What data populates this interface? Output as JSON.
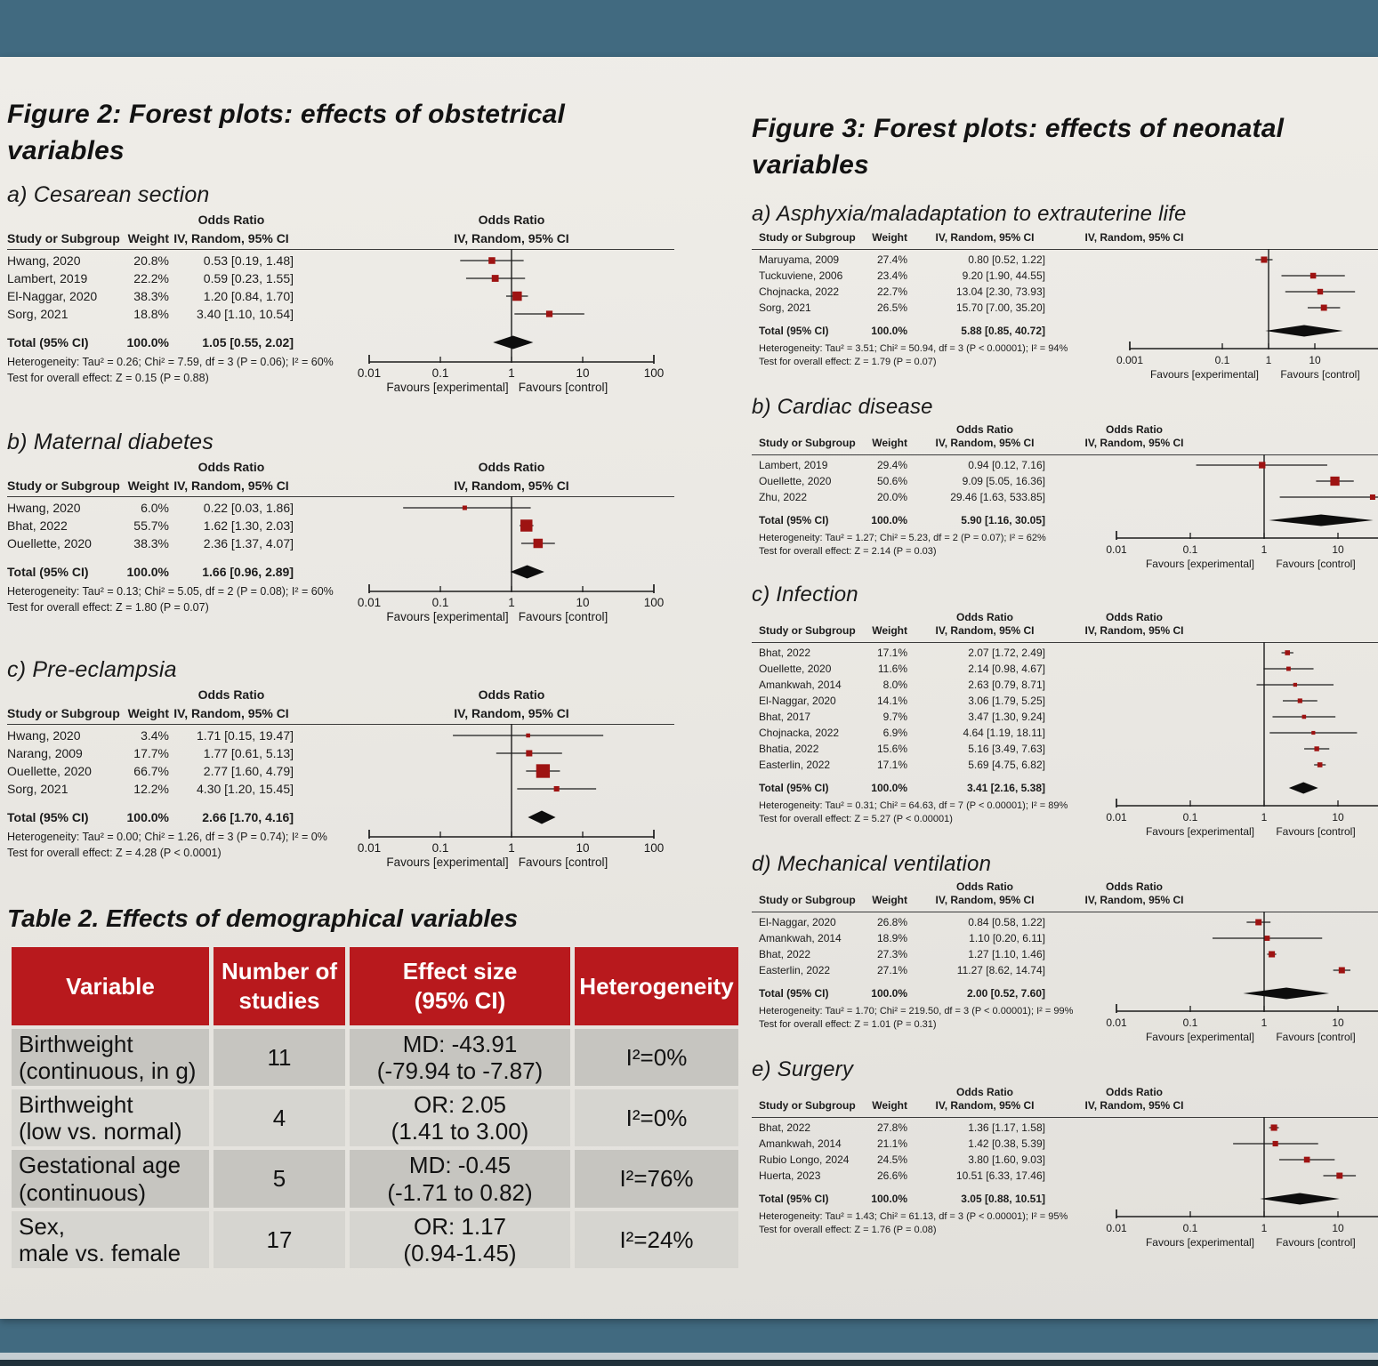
{
  "page": {
    "fig2_title": "Figure 2: Forest plots: effects of obstetrical variables",
    "fig3_title": "Figure 3: Forest plots: effects of neonatal variables",
    "table2_title": "Table 2. Effects of demographical variables"
  },
  "colors": {
    "backdrop_teal": "#416a80",
    "page_offwhite": "#e9e7e2",
    "table_header_red": "#b8191d",
    "marker_red": "#9e1312",
    "diamond_black": "#0d0d0d"
  },
  "chart_data": [
    {
      "id": "fig2a",
      "figure": "Figure 2",
      "type": "forest",
      "label": "a) Cesarean section",
      "or_title": "Odds Ratio",
      "plot_header_title": "Odds Ratio",
      "plot_header_sub": "IV, Random, 95% CI",
      "columns": {
        "study": "Study or Subgroup",
        "weight": "Weight",
        "ci": "IV, Random, 95% CI"
      },
      "studies": [
        {
          "study": "Hwang, 2020",
          "weight": "20.8%",
          "ci": "0.53 [0.19, 1.48]"
        },
        {
          "study": "Lambert, 2019",
          "weight": "22.2%",
          "ci": "0.59 [0.23, 1.55]"
        },
        {
          "study": "El-Naggar, 2020",
          "weight": "38.3%",
          "ci": "1.20 [0.84, 1.70]"
        },
        {
          "study": "Sorg, 2021",
          "weight": "18.8%",
          "ci": "3.40 [1.10, 10.54]"
        }
      ],
      "total": {
        "label": "Total (95% CI)",
        "weight": "100.0%",
        "ci": "1.05 [0.55, 2.02]"
      },
      "heterogeneity": "Heterogeneity: Tau² = 0.26; Chi² = 7.59, df = 3 (P = 0.06); I² = 60%",
      "overall_test": "Test for overall effect: Z = 0.15 (P = 0.88)",
      "axis_ticks": [
        "0.01",
        "0.1",
        "1",
        "10",
        "100"
      ],
      "favours_left": "Favours [experimental]",
      "favours_right": "Favours [control]"
    },
    {
      "id": "fig2b",
      "figure": "Figure 2",
      "type": "forest",
      "label": "b) Maternal diabetes",
      "or_title": "Odds Ratio",
      "plot_header_title": "Odds Ratio",
      "plot_header_sub": "IV, Random, 95% CI",
      "columns": {
        "study": "Study or Subgroup",
        "weight": "Weight",
        "ci": "IV, Random, 95% CI"
      },
      "studies": [
        {
          "study": "Hwang, 2020",
          "weight": "6.0%",
          "ci": "0.22 [0.03, 1.86]"
        },
        {
          "study": "Bhat, 2022",
          "weight": "55.7%",
          "ci": "1.62 [1.30, 2.03]"
        },
        {
          "study": "Ouellette, 2020",
          "weight": "38.3%",
          "ci": "2.36 [1.37, 4.07]"
        }
      ],
      "total": {
        "label": "Total (95% CI)",
        "weight": "100.0%",
        "ci": "1.66 [0.96, 2.89]"
      },
      "heterogeneity": "Heterogeneity: Tau² = 0.13; Chi² = 5.05, df = 2 (P = 0.08); I² = 60%",
      "overall_test": "Test for overall effect: Z = 1.80 (P = 0.07)",
      "axis_ticks": [
        "0.01",
        "0.1",
        "1",
        "10",
        "100"
      ],
      "favours_left": "Favours [experimental]",
      "favours_right": "Favours [control]"
    },
    {
      "id": "fig2c",
      "figure": "Figure 2",
      "type": "forest",
      "label": "c) Pre-eclampsia",
      "or_title": "Odds Ratio",
      "plot_header_title": "Odds Ratio",
      "plot_header_sub": "IV, Random, 95% CI",
      "columns": {
        "study": "Study or Subgroup",
        "weight": "Weight",
        "ci": "IV, Random, 95% CI"
      },
      "studies": [
        {
          "study": "Hwang, 2020",
          "weight": "3.4%",
          "ci": "1.71 [0.15, 19.47]"
        },
        {
          "study": "Narang, 2009",
          "weight": "17.7%",
          "ci": "1.77 [0.61, 5.13]"
        },
        {
          "study": "Ouellette, 2020",
          "weight": "66.7%",
          "ci": "2.77 [1.60, 4.79]"
        },
        {
          "study": "Sorg, 2021",
          "weight": "12.2%",
          "ci": "4.30 [1.20, 15.45]"
        }
      ],
      "total": {
        "label": "Total (95% CI)",
        "weight": "100.0%",
        "ci": "2.66 [1.70, 4.16]"
      },
      "heterogeneity": "Heterogeneity: Tau² = 0.00; Chi² = 1.26, df = 3 (P = 0.74); I² = 0%",
      "overall_test": "Test for overall effect: Z = 4.28 (P < 0.0001)",
      "axis_ticks": [
        "0.01",
        "0.1",
        "1",
        "10",
        "100"
      ],
      "favours_left": "Favours [experimental]",
      "favours_right": "Favours [control]"
    },
    {
      "id": "fig3a",
      "figure": "Figure 3",
      "type": "forest",
      "label": "a) Asphyxia/maladaptation to extrauterine life",
      "or_title": "",
      "plot_header_title": "",
      "plot_header_sub": "IV, Random, 95% CI",
      "columns": {
        "study": "Study or Subgroup",
        "weight": "Weight",
        "ci": "IV, Random, 95% CI"
      },
      "studies": [
        {
          "study": "Maruyama, 2009",
          "weight": "27.4%",
          "ci": "0.80 [0.52, 1.22]"
        },
        {
          "study": "Tuckuviene, 2006",
          "weight": "23.4%",
          "ci": "9.20 [1.90, 44.55]"
        },
        {
          "study": "Chojnacka, 2022",
          "weight": "22.7%",
          "ci": "13.04 [2.30, 73.93]"
        },
        {
          "study": "Sorg, 2021",
          "weight": "26.5%",
          "ci": "15.70 [7.00, 35.20]"
        }
      ],
      "total": {
        "label": "Total (95% CI)",
        "weight": "100.0%",
        "ci": "5.88 [0.85, 40.72]"
      },
      "heterogeneity": "Heterogeneity: Tau² = 3.51; Chi² = 50.94, df = 3 (P < 0.00001); I² = 94%",
      "overall_test": "Test for overall effect: Z = 1.79 (P = 0.07)",
      "axis_ticks": [
        "0.001",
        "0.1",
        "1",
        "10"
      ],
      "favours_left": "Favours [experimental]",
      "favours_right": "Favours [control]"
    },
    {
      "id": "fig3b",
      "figure": "Figure 3",
      "type": "forest",
      "label": "b) Cardiac disease",
      "or_title": "Odds Ratio",
      "plot_header_title": "Odds Ratio",
      "plot_header_sub": "IV, Random, 95% CI",
      "columns": {
        "study": "Study or Subgroup",
        "weight": "Weight",
        "ci": "IV, Random, 95% CI"
      },
      "studies": [
        {
          "study": "Lambert, 2019",
          "weight": "29.4%",
          "ci": "0.94 [0.12, 7.16]"
        },
        {
          "study": "Ouellette, 2020",
          "weight": "50.6%",
          "ci": "9.09 [5.05, 16.36]"
        },
        {
          "study": "Zhu, 2022",
          "weight": "20.0%",
          "ci": "29.46 [1.63, 533.85]"
        }
      ],
      "total": {
        "label": "Total (95% CI)",
        "weight": "100.0%",
        "ci": "5.90 [1.16, 30.05]"
      },
      "heterogeneity": "Heterogeneity: Tau² = 1.27; Chi² = 5.23, df = 2 (P = 0.07); I² = 62%",
      "overall_test": "Test for overall effect: Z = 2.14 (P = 0.03)",
      "axis_ticks": [
        "0.01",
        "0.1",
        "1",
        "10"
      ],
      "favours_left": "Favours [experimental]",
      "favours_right": "Favours [control]"
    },
    {
      "id": "fig3c",
      "figure": "Figure 3",
      "type": "forest",
      "label": "c) Infection",
      "or_title": "Odds Ratio",
      "plot_header_title": "Odds Ratio",
      "plot_header_sub": "IV, Random, 95% CI",
      "columns": {
        "study": "Study or Subgroup",
        "weight": "Weight",
        "ci": "IV, Random, 95% CI"
      },
      "studies": [
        {
          "study": "Bhat, 2022",
          "weight": "17.1%",
          "ci": "2.07 [1.72, 2.49]"
        },
        {
          "study": "Ouellette, 2020",
          "weight": "11.6%",
          "ci": "2.14 [0.98, 4.67]"
        },
        {
          "study": "Amankwah, 2014",
          "weight": "8.0%",
          "ci": "2.63 [0.79, 8.71]"
        },
        {
          "study": "El-Naggar, 2020",
          "weight": "14.1%",
          "ci": "3.06 [1.79, 5.25]"
        },
        {
          "study": "Bhat, 2017",
          "weight": "9.7%",
          "ci": "3.47 [1.30, 9.24]"
        },
        {
          "study": "Chojnacka, 2022",
          "weight": "6.9%",
          "ci": "4.64 [1.19, 18.11]"
        },
        {
          "study": "Bhatia, 2022",
          "weight": "15.6%",
          "ci": "5.16 [3.49, 7.63]"
        },
        {
          "study": "Easterlin, 2022",
          "weight": "17.1%",
          "ci": "5.69 [4.75, 6.82]"
        }
      ],
      "total": {
        "label": "Total (95% CI)",
        "weight": "100.0%",
        "ci": "3.41 [2.16, 5.38]"
      },
      "heterogeneity": "Heterogeneity: Tau² = 0.31; Chi² = 64.63, df = 7 (P < 0.00001); I² = 89%",
      "overall_test": "Test for overall effect: Z = 5.27 (P < 0.00001)",
      "axis_ticks": [
        "0.01",
        "0.1",
        "1",
        "10"
      ],
      "favours_left": "Favours [experimental]",
      "favours_right": "Favours [control]"
    },
    {
      "id": "fig3d",
      "figure": "Figure 3",
      "type": "forest",
      "label": "d) Mechanical ventilation",
      "or_title": "Odds Ratio",
      "plot_header_title": "Odds Ratio",
      "plot_header_sub": "IV, Random, 95% CI",
      "columns": {
        "study": "Study or Subgroup",
        "weight": "Weight",
        "ci": "IV, Random, 95% CI"
      },
      "studies": [
        {
          "study": "El-Naggar, 2020",
          "weight": "26.8%",
          "ci": "0.84 [0.58, 1.22]"
        },
        {
          "study": "Amankwah, 2014",
          "weight": "18.9%",
          "ci": "1.10 [0.20, 6.11]"
        },
        {
          "study": "Bhat, 2022",
          "weight": "27.3%",
          "ci": "1.27 [1.10, 1.46]"
        },
        {
          "study": "Easterlin, 2022",
          "weight": "27.1%",
          "ci": "11.27 [8.62, 14.74]"
        }
      ],
      "total": {
        "label": "Total (95% CI)",
        "weight": "100.0%",
        "ci": "2.00 [0.52, 7.60]"
      },
      "heterogeneity": "Heterogeneity: Tau² = 1.70; Chi² = 219.50, df = 3 (P < 0.00001); I² = 99%",
      "overall_test": "Test for overall effect: Z = 1.01 (P = 0.31)",
      "axis_ticks": [
        "0.01",
        "0.1",
        "1",
        "10"
      ],
      "favours_left": "Favours [experimental]",
      "favours_right": "Favours [control]"
    },
    {
      "id": "fig3e",
      "figure": "Figure 3",
      "type": "forest",
      "label": "e) Surgery",
      "or_title": "Odds Ratio",
      "plot_header_title": "Odds Ratio",
      "plot_header_sub": "IV, Random, 95% CI",
      "columns": {
        "study": "Study or Subgroup",
        "weight": "Weight",
        "ci": "IV, Random, 95% CI"
      },
      "studies": [
        {
          "study": "Bhat, 2022",
          "weight": "27.8%",
          "ci": "1.36 [1.17, 1.58]"
        },
        {
          "study": "Amankwah, 2014",
          "weight": "21.1%",
          "ci": "1.42 [0.38, 5.39]"
        },
        {
          "study": "Rubio Longo, 2024",
          "weight": "24.5%",
          "ci": "3.80 [1.60, 9.03]"
        },
        {
          "study": "Huerta, 2023",
          "weight": "26.6%",
          "ci": "10.51 [6.33, 17.46]"
        }
      ],
      "total": {
        "label": "Total (95% CI)",
        "weight": "100.0%",
        "ci": "3.05 [0.88, 10.51]"
      },
      "heterogeneity": "Heterogeneity: Tau² = 1.43; Chi² = 61.13, df = 3 (P < 0.00001); I² = 95%",
      "overall_test": "Test for overall effect: Z = 1.76 (P = 0.08)",
      "axis_ticks": [
        "0.01",
        "0.1",
        "1",
        "10"
      ],
      "favours_left": "Favours [experimental]",
      "favours_right": "Favours [control]"
    }
  ],
  "table2": {
    "headers": [
      "Variable",
      "Number of\nstudies",
      "Effect size\n(95% CI)",
      "Heterogeneity"
    ],
    "rows": [
      {
        "variable": "Birthweight\n(continuous, in g)",
        "n": "11",
        "effect": "MD: -43.91\n(-79.94 to -7.87)",
        "heterogeneity": "I²=0%"
      },
      {
        "variable": "Birthweight\n(low vs. normal)",
        "n": "4",
        "effect": "OR: 2.05\n(1.41 to 3.00)",
        "heterogeneity": "I²=0%"
      },
      {
        "variable": "Gestational age\n(continuous)",
        "n": "5",
        "effect": "MD: -0.45\n(-1.71 to 0.82)",
        "heterogeneity": "I²=76%"
      },
      {
        "variable": "Sex,\nmale vs. female",
        "n": "17",
        "effect": "OR: 1.17\n(0.94-1.45)",
        "heterogeneity": "I²=24%"
      }
    ]
  }
}
